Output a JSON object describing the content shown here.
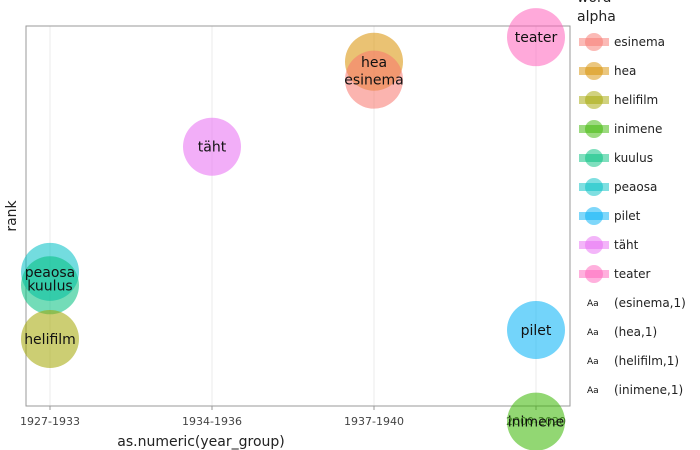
{
  "chart_data": {
    "type": "scatter",
    "xlabel": "as.numeric(year_group)",
    "ylabel": "rank",
    "categories": [
      "1927-1933",
      "1934-1936",
      "1937-1940",
      "2000-2020"
    ],
    "grid": true,
    "legend": {
      "placement": "right",
      "title_lines": [
        "word",
        "alpha"
      ],
      "color_entries": [
        {
          "name": "esinema",
          "color": "#f8766d"
        },
        {
          "name": "hea",
          "color": "#d89000"
        },
        {
          "name": "helifilm",
          "color": "#a3a500"
        },
        {
          "name": "inimene",
          "color": "#39b600"
        },
        {
          "name": "kuulus",
          "color": "#00bf7d"
        },
        {
          "name": "peaosa",
          "color": "#00bfc4"
        },
        {
          "name": "pilet",
          "color": "#00b0f6"
        },
        {
          "name": "täht",
          "color": "#e76bf3"
        },
        {
          "name": "teater",
          "color": "#ff62bc"
        }
      ],
      "text_entries": [
        {
          "symbol": "Aa",
          "label": "(esinema,1)"
        },
        {
          "symbol": "Aa",
          "label": "(hea,1)"
        },
        {
          "symbol": "Aa",
          "label": "(helifilm,1)"
        },
        {
          "symbol": "Aa",
          "label": "(inimene,1)"
        }
      ]
    },
    "points": [
      {
        "word": "teater",
        "x": "2000-2020",
        "rank": 9.0,
        "color": "#ff62bc"
      },
      {
        "word": "hea",
        "x": "1937-1940",
        "rank": 8.45,
        "color": "#d89000"
      },
      {
        "word": "esinema",
        "x": "1937-1940",
        "rank": 8.05,
        "color": "#f8766d"
      },
      {
        "word": "täht",
        "x": "1934-1936",
        "rank": 6.55,
        "color": "#e76bf3"
      },
      {
        "word": "peaosa",
        "x": "1927-1933",
        "rank": 3.75,
        "color": "#00bfc4"
      },
      {
        "word": "kuulus",
        "x": "1927-1933",
        "rank": 3.45,
        "color": "#00bf7d"
      },
      {
        "word": "helifilm",
        "x": "1927-1933",
        "rank": 2.25,
        "color": "#a3a500"
      },
      {
        "word": "pilet",
        "x": "2000-2020",
        "rank": 2.45,
        "color": "#00b0f6"
      },
      {
        "word": "inimene",
        "x": "2000-2020",
        "rank": 0.4,
        "color": "#39b600"
      }
    ],
    "ylim": [
      0.75,
      9.25
    ]
  }
}
